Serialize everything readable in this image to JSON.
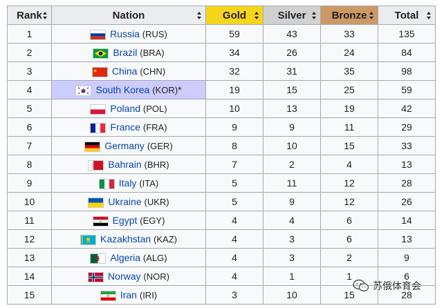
{
  "table": {
    "headers": {
      "rank": "Rank",
      "nation": "Nation",
      "gold": "Gold",
      "silver": "Silver",
      "bronze": "Bronze",
      "total": "Total"
    },
    "rows": [
      {
        "rank": "1",
        "country": "Russia",
        "code": "(RUS)",
        "host_mark": "",
        "gold": "59",
        "silver": "43",
        "bronze": "33",
        "total": "135",
        "flag": "russia-flag"
      },
      {
        "rank": "2",
        "country": "Brazil",
        "code": "(BRA)",
        "host_mark": "",
        "gold": "34",
        "silver": "26",
        "bronze": "24",
        "total": "84",
        "flag": "brazil-flag"
      },
      {
        "rank": "3",
        "country": "China",
        "code": "(CHN)",
        "host_mark": "",
        "gold": "32",
        "silver": "31",
        "bronze": "35",
        "total": "98",
        "flag": "china-flag"
      },
      {
        "rank": "4",
        "country": "South Korea",
        "code": "(KOR)",
        "host_mark": "*",
        "gold": "19",
        "silver": "15",
        "bronze": "25",
        "total": "59",
        "flag": "south-korea-flag"
      },
      {
        "rank": "5",
        "country": "Poland",
        "code": "(POL)",
        "host_mark": "",
        "gold": "10",
        "silver": "13",
        "bronze": "19",
        "total": "42",
        "flag": "poland-flag"
      },
      {
        "rank": "6",
        "country": "France",
        "code": "(FRA)",
        "host_mark": "",
        "gold": "9",
        "silver": "9",
        "bronze": "11",
        "total": "29",
        "flag": "france-flag"
      },
      {
        "rank": "7",
        "country": "Germany",
        "code": "(GER)",
        "host_mark": "",
        "gold": "8",
        "silver": "10",
        "bronze": "15",
        "total": "33",
        "flag": "germany-flag"
      },
      {
        "rank": "8",
        "country": "Bahrain",
        "code": "(BHR)",
        "host_mark": "",
        "gold": "7",
        "silver": "2",
        "bronze": "4",
        "total": "13",
        "flag": "bahrain-flag"
      },
      {
        "rank": "9",
        "country": "Italy",
        "code": "(ITA)",
        "host_mark": "",
        "gold": "5",
        "silver": "11",
        "bronze": "12",
        "total": "28",
        "flag": "italy-flag"
      },
      {
        "rank": "10",
        "country": "Ukraine",
        "code": "(UKR)",
        "host_mark": "",
        "gold": "5",
        "silver": "9",
        "bronze": "12",
        "total": "26",
        "flag": "ukraine-flag"
      },
      {
        "rank": "11",
        "country": "Egypt",
        "code": "(EGY)",
        "host_mark": "",
        "gold": "4",
        "silver": "4",
        "bronze": "6",
        "total": "14",
        "flag": "egypt-flag"
      },
      {
        "rank": "12",
        "country": "Kazakhstan",
        "code": "(KAZ)",
        "host_mark": "",
        "gold": "4",
        "silver": "3",
        "bronze": "6",
        "total": "13",
        "flag": "kazakhstan-flag"
      },
      {
        "rank": "13",
        "country": "Algeria",
        "code": "(ALG)",
        "host_mark": "",
        "gold": "4",
        "silver": "3",
        "bronze": "2",
        "total": "9",
        "flag": "algeria-flag"
      },
      {
        "rank": "14",
        "country": "Norway",
        "code": "(NOR)",
        "host_mark": "",
        "gold": "4",
        "silver": "1",
        "bronze": "1",
        "total": "6",
        "flag": "norway-flag"
      },
      {
        "rank": "15",
        "country": "Iran",
        "code": "(IRI)",
        "host_mark": "",
        "gold": "3",
        "silver": "10",
        "bronze": "15",
        "total": "28",
        "flag": "iran-flag"
      }
    ]
  },
  "watermark": {
    "text": "苏俄体育会",
    "icon": "wechat-icon"
  },
  "colors": {
    "gold_header": "#f7d51b",
    "silver_header": "#d1d1d2",
    "bronze_header": "#cc9966",
    "host_highlight": "#ccccff",
    "link": "#0645ad"
  }
}
